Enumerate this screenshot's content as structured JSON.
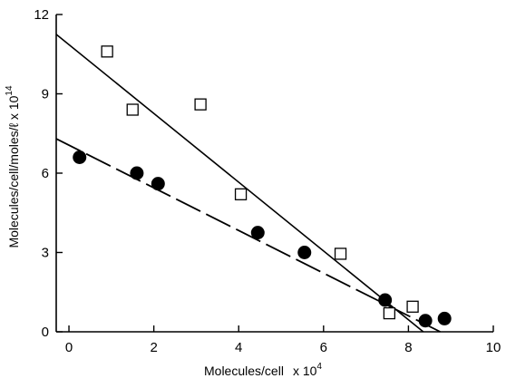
{
  "chart_data": {
    "type": "scatter",
    "xlabel": "Molecules/cell",
    "xlabel_scale": "x 10",
    "xlabel_exp": "4",
    "ylabel": "Molecules/cell/moles/ℓ x 10",
    "ylabel_exp": "14",
    "xlim": [
      -0.3,
      10
    ],
    "ylim": [
      0,
      12
    ],
    "xticks": [
      0,
      2,
      4,
      6,
      8,
      10
    ],
    "yticks": [
      0,
      3,
      6,
      9,
      12
    ],
    "grid": false,
    "series": [
      {
        "marker": "open-square",
        "points": [
          {
            "x": 0.9,
            "y": 10.6
          },
          {
            "x": 1.5,
            "y": 8.4
          },
          {
            "x": 3.1,
            "y": 8.6
          },
          {
            "x": 4.05,
            "y": 5.2
          },
          {
            "x": 6.4,
            "y": 2.95
          },
          {
            "x": 7.55,
            "y": 0.7
          },
          {
            "x": 8.1,
            "y": 0.95
          }
        ],
        "fit_line": {
          "style": "solid",
          "from": [
            -0.3,
            11.25
          ],
          "to": [
            8.35,
            0
          ]
        }
      },
      {
        "marker": "filled-circle",
        "points": [
          {
            "x": 0.25,
            "y": 6.6
          },
          {
            "x": 1.6,
            "y": 6.0
          },
          {
            "x": 2.1,
            "y": 5.6
          },
          {
            "x": 4.45,
            "y": 3.75
          },
          {
            "x": 5.55,
            "y": 3.0
          },
          {
            "x": 7.45,
            "y": 1.2
          },
          {
            "x": 8.4,
            "y": 0.42
          },
          {
            "x": 8.85,
            "y": 0.5
          }
        ],
        "fit_line": {
          "style": "dashed",
          "from": [
            -0.3,
            7.3
          ],
          "to": [
            8.75,
            0
          ]
        }
      }
    ]
  }
}
